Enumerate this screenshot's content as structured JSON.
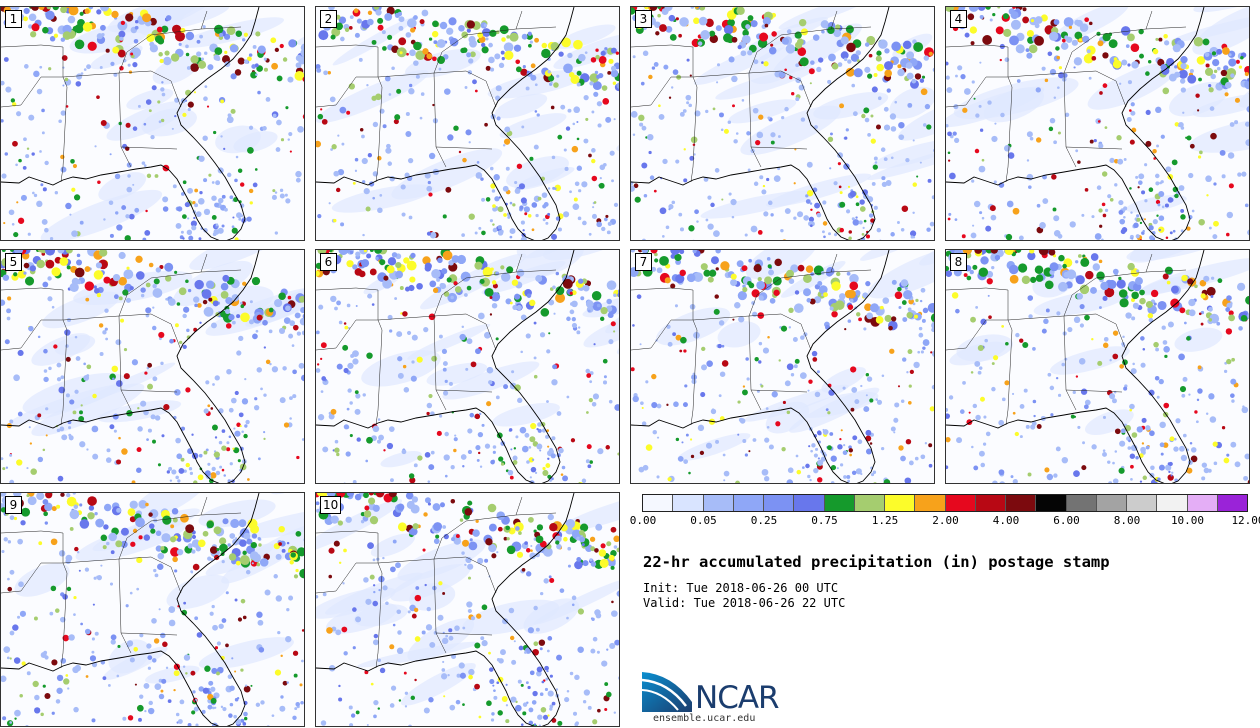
{
  "panels": [
    {
      "label": "1"
    },
    {
      "label": "2"
    },
    {
      "label": "3"
    },
    {
      "label": "4"
    },
    {
      "label": "5"
    },
    {
      "label": "6"
    },
    {
      "label": "7"
    },
    {
      "label": "8"
    },
    {
      "label": "9"
    },
    {
      "label": "10"
    }
  ],
  "colorbar": {
    "colors": [
      "#f5f8ff",
      "#d9e4ff",
      "#a7bcf8",
      "#8fa7f7",
      "#7c92f3",
      "#6877ec",
      "#159a2c",
      "#a5cd6f",
      "#fcfc2a",
      "#f7a21b",
      "#e6081e",
      "#b80814",
      "#7c0a0e",
      "#050505",
      "#737373",
      "#a3a3a3",
      "#cccccc",
      "#f2f2f2",
      "#e4aef6",
      "#9a23d8"
    ],
    "tick_labels": [
      "0.00",
      "0.05",
      "0.25",
      "0.75",
      "1.25",
      "2.00",
      "4.00",
      "6.00",
      "8.00",
      "10.00",
      "12.00"
    ]
  },
  "title": "22-hr accumulated precipitation (in) postage stamp",
  "init": "Init: Tue 2018-06-26 00 UTC",
  "valid": "Valid: Tue 2018-06-26 22 UTC",
  "logo_text": "NCAR",
  "site": "ensemble.ucar.edu"
}
